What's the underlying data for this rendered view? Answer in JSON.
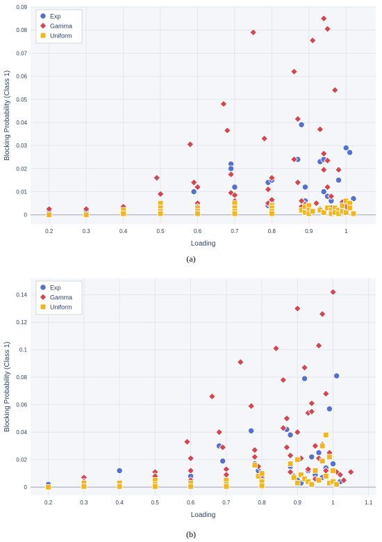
{
  "colors": {
    "exp": "#5470d4",
    "gamma": "#d6454f",
    "uniform": "#f2b51c",
    "plot_bg": "#f5f6fa",
    "grid": "#e3e6ee",
    "zero_line": "#b0b4bc"
  },
  "chart_data": [
    {
      "type": "scatter",
      "panel_label": "(a)",
      "xlabel": "Loading",
      "ylabel": "Blocking Probability (Class 1)",
      "xlim": [
        0.15,
        1.08
      ],
      "ylim": [
        -0.004,
        0.09
      ],
      "xticks": [
        0.2,
        0.3,
        0.4,
        0.5,
        0.6,
        0.7,
        0.8,
        0.9,
        1
      ],
      "xtick_labels": [
        "0.2",
        "0.3",
        "0.4",
        "0.5",
        "0.6",
        "0.7",
        "0.8",
        "0.9",
        "1"
      ],
      "yticks": [
        0,
        0.01,
        0.02,
        0.03,
        0.04,
        0.05,
        0.06,
        0.07,
        0.08,
        0.09
      ],
      "ytick_labels": [
        "0",
        "0.01",
        "0.02",
        "0.03",
        "0.04",
        "0.05",
        "0.06",
        "0.07",
        "0.08",
        "0.09"
      ],
      "legend": {
        "position": "top-left",
        "entries": [
          "Exp",
          "Gamma",
          "Uniform"
        ]
      },
      "series": [
        {
          "name": "Exp",
          "marker": "circle",
          "x": [
            0.2,
            0.3,
            0.4,
            0.4,
            0.5,
            0.5,
            0.5,
            0.59,
            0.6,
            0.6,
            0.6,
            0.69,
            0.69,
            0.7,
            0.7,
            0.7,
            0.78,
            0.79,
            0.79,
            0.8,
            0.8,
            0.8,
            0.87,
            0.88,
            0.89,
            0.89,
            0.89,
            0.9,
            0.93,
            0.94,
            0.94,
            0.95,
            0.96,
            0.97,
            0.98,
            0.99,
            1.0,
            1.0,
            1.01,
            1.01,
            1.02
          ],
          "y": [
            0.002,
            0.002,
            0.003,
            0.002,
            0.005,
            0.003,
            0.002,
            0.01,
            0.012,
            0.004,
            0.003,
            0.022,
            0.02,
            0.012,
            0.006,
            0.003,
            0.033,
            0.014,
            0.004,
            0.015,
            0.006,
            0.002,
            0.024,
            0.039,
            0.012,
            0.006,
            0.003,
            0.002,
            0.023,
            0.024,
            0.01,
            0.008,
            0.006,
            0.003,
            0.015,
            0.004,
            0.002,
            0.029,
            0.027,
            0.003,
            0.007
          ]
        },
        {
          "name": "Gamma",
          "marker": "diamond",
          "x": [
            0.2,
            0.3,
            0.4,
            0.49,
            0.5,
            0.5,
            0.58,
            0.59,
            0.6,
            0.6,
            0.6,
            0.67,
            0.68,
            0.69,
            0.69,
            0.7,
            0.7,
            0.7,
            0.75,
            0.78,
            0.79,
            0.79,
            0.8,
            0.8,
            0.8,
            0.8,
            0.86,
            0.86,
            0.87,
            0.87,
            0.88,
            0.88,
            0.89,
            0.89,
            0.9,
            0.91,
            0.92,
            0.93,
            0.93,
            0.94,
            0.94,
            0.94,
            0.95,
            0.95,
            0.95,
            0.96,
            0.96,
            0.97,
            0.97,
            0.98,
            0.99,
            1.0
          ],
          "y": [
            0.0025,
            0.0025,
            0.0035,
            0.016,
            0.009,
            0.005,
            0.0305,
            0.014,
            0.012,
            0.005,
            0.0035,
            0.048,
            0.0365,
            0.0175,
            0.0095,
            0.0085,
            0.006,
            0.003,
            0.079,
            0.033,
            0.011,
            0.005,
            0.016,
            0.0065,
            0.004,
            0.002,
            0.024,
            0.062,
            0.0415,
            0.014,
            0.0035,
            0.006,
            0.0015,
            0.0045,
            0.002,
            0.0755,
            0.005,
            0.037,
            0.0025,
            0.085,
            0.0265,
            0.0195,
            0.0235,
            0.0805,
            0.012,
            0.008,
            0.003,
            0.054,
            0.0015,
            0.0195,
            0.0055,
            0.0035
          ]
        },
        {
          "name": "Uniform",
          "marker": "square",
          "x": [
            0.2,
            0.3,
            0.4,
            0.4,
            0.5,
            0.5,
            0.5,
            0.5,
            0.6,
            0.6,
            0.6,
            0.7,
            0.7,
            0.7,
            0.7,
            0.8,
            0.8,
            0.8,
            0.8,
            0.88,
            0.89,
            0.89,
            0.9,
            0.9,
            0.9,
            0.91,
            0.93,
            0.94,
            0.95,
            0.96,
            0.96,
            0.97,
            0.97,
            0.98,
            0.98,
            0.99,
            0.99,
            1.0,
            1.0,
            1.01,
            1.01,
            1.02
          ],
          "y": [
            0.0,
            0.0,
            0.002,
            0.0005,
            0.005,
            0.003,
            0.0015,
            0.0005,
            0.003,
            0.0015,
            0.0005,
            0.005,
            0.003,
            0.0015,
            0.0005,
            0.004,
            0.003,
            0.0015,
            0.0005,
            0.002,
            0.0035,
            0.001,
            0.004,
            0.002,
            0.0005,
            0.0015,
            0.002,
            0.001,
            0.003,
            0.002,
            0.0005,
            0.003,
            0.001,
            0.002,
            0.0005,
            0.004,
            0.0015,
            0.006,
            0.001,
            0.005,
            0.003,
            0.0005
          ]
        }
      ]
    },
    {
      "type": "scatter",
      "panel_label": "(b)",
      "xlabel": "Loading",
      "ylabel": "Blocking Probability (Class 1)",
      "xlim": [
        0.15,
        1.12
      ],
      "ylim": [
        -0.006,
        0.152
      ],
      "xticks": [
        0.2,
        0.3,
        0.4,
        0.5,
        0.6,
        0.7,
        0.8,
        0.9,
        1,
        1.1
      ],
      "xtick_labels": [
        "0.2",
        "0.3",
        "0.4",
        "0.5",
        "0.6",
        "0.7",
        "0.8",
        "0.9",
        "1",
        "1.1"
      ],
      "yticks": [
        0,
        0.02,
        0.04,
        0.06,
        0.08,
        0.1,
        0.12,
        0.14
      ],
      "ytick_labels": [
        "0",
        "0.02",
        "0.04",
        "0.06",
        "0.08",
        "0.1",
        "0.12",
        "0.14"
      ],
      "legend": {
        "position": "top-left",
        "entries": [
          "Exp",
          "Gamma",
          "Uniform"
        ]
      },
      "series": [
        {
          "name": "Exp",
          "marker": "circle",
          "x": [
            0.2,
            0.3,
            0.4,
            0.5,
            0.6,
            0.6,
            0.68,
            0.69,
            0.7,
            0.77,
            0.78,
            0.79,
            0.8,
            0.87,
            0.88,
            0.88,
            0.89,
            0.9,
            0.91,
            0.92,
            0.93,
            0.94,
            0.95,
            0.96,
            0.97,
            0.98,
            0.99,
            0.99,
            1.0,
            1.01,
            1.02,
            1.02
          ],
          "y": [
            0.002,
            0.003,
            0.012,
            0.003,
            0.008,
            0.003,
            0.03,
            0.019,
            0.006,
            0.041,
            0.017,
            0.012,
            0.007,
            0.042,
            0.038,
            0.015,
            0.007,
            0.005,
            0.003,
            0.079,
            0.012,
            0.022,
            0.009,
            0.025,
            0.007,
            0.014,
            0.057,
            0.024,
            0.017,
            0.081,
            0.009,
            0.004
          ]
        },
        {
          "name": "Gamma",
          "marker": "diamond",
          "x": [
            0.3,
            0.3,
            0.4,
            0.5,
            0.5,
            0.5,
            0.59,
            0.6,
            0.6,
            0.6,
            0.66,
            0.68,
            0.69,
            0.7,
            0.7,
            0.74,
            0.77,
            0.78,
            0.78,
            0.79,
            0.8,
            0.8,
            0.84,
            0.86,
            0.86,
            0.87,
            0.87,
            0.88,
            0.88,
            0.89,
            0.9,
            0.9,
            0.91,
            0.92,
            0.93,
            0.93,
            0.94,
            0.94,
            0.95,
            0.95,
            0.96,
            0.96,
            0.97,
            0.97,
            0.98,
            0.98,
            0.99,
            1.0,
            1.01,
            1.02,
            1.03,
            1.05
          ],
          "y": [
            0.007,
            0.004,
            0.003,
            0.011,
            0.008,
            0.004,
            0.033,
            0.021,
            0.012,
            0.005,
            0.066,
            0.04,
            0.029,
            0.013,
            0.009,
            0.091,
            0.059,
            0.027,
            0.022,
            0.015,
            0.008,
            0.004,
            0.101,
            0.078,
            0.043,
            0.05,
            0.029,
            0.023,
            0.011,
            0.008,
            0.13,
            0.04,
            0.021,
            0.087,
            0.054,
            0.013,
            0.061,
            0.055,
            0.03,
            0.006,
            0.103,
            0.021,
            0.126,
            0.031,
            0.068,
            0.012,
            0.025,
            0.142,
            0.011,
            0.009,
            0.005,
            0.011
          ]
        },
        {
          "name": "Uniform",
          "marker": "square",
          "x": [
            0.2,
            0.3,
            0.3,
            0.4,
            0.4,
            0.5,
            0.5,
            0.5,
            0.6,
            0.6,
            0.7,
            0.7,
            0.7,
            0.78,
            0.79,
            0.8,
            0.8,
            0.8,
            0.88,
            0.89,
            0.9,
            0.9,
            0.91,
            0.92,
            0.93,
            0.94,
            0.95,
            0.96,
            0.97,
            0.97,
            0.98,
            0.98,
            0.99,
            0.99,
            1.0,
            1.0,
            1.01
          ],
          "y": [
            0.0,
            0.003,
            0.0005,
            0.003,
            0.0005,
            0.005,
            0.002,
            0.0005,
            0.003,
            0.0005,
            0.005,
            0.002,
            0.0005,
            0.016,
            0.008,
            0.01,
            0.004,
            0.001,
            0.017,
            0.007,
            0.02,
            0.003,
            0.009,
            0.006,
            0.004,
            0.002,
            0.012,
            0.005,
            0.03,
            0.019,
            0.038,
            0.008,
            0.022,
            0.003,
            0.012,
            0.004,
            0.002
          ]
        }
      ]
    }
  ]
}
